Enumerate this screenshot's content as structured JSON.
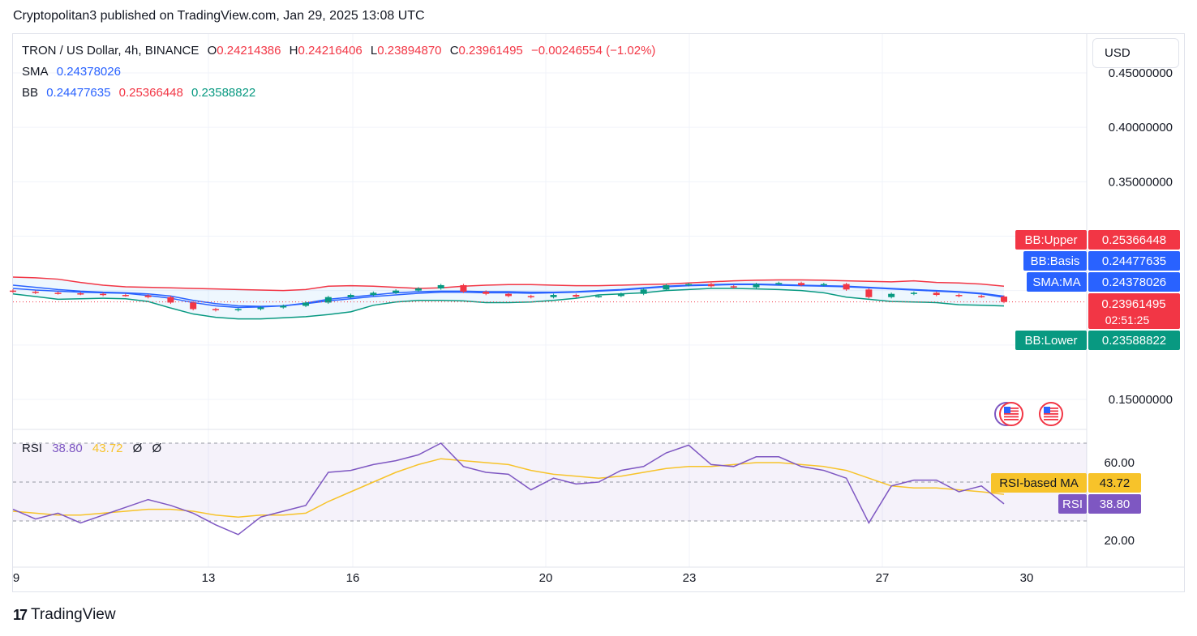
{
  "header": {
    "published": "Cryptopolitan3 published on TradingView.com, Jan 29, 2025 13:08 UTC"
  },
  "legend": {
    "symbol": "TRON / US Dollar, 4h, BINANCE",
    "o_label": "O",
    "o": "0.24214386",
    "h_label": "H",
    "h": "0.24216406",
    "l_label": "L",
    "l": "0.23894870",
    "c_label": "C",
    "c": "0.23961495",
    "change": "−0.00246554 (−1.02%)",
    "sma_label": "SMA",
    "sma": "0.24378026",
    "bb_label": "BB",
    "bb_basis": "0.24477635",
    "bb_upper": "0.25366448",
    "bb_lower": "0.23588822"
  },
  "currency": "USD",
  "price_axis": {
    "ticks": [
      "0.45000000",
      "0.40000000",
      "0.35000000",
      "0.15000000"
    ]
  },
  "price_labels": {
    "bb_upper_name": "BB:Upper",
    "bb_upper_value": "0.25366448",
    "bb_basis_name": "BB:Basis",
    "bb_basis_value": "0.24477635",
    "sma_name": "SMA:MA",
    "sma_value": "0.24378026",
    "last_price": "0.23961495",
    "countdown": "02:51:25",
    "bb_lower_name": "BB:Lower",
    "bb_lower_value": "0.23588822"
  },
  "rsi": {
    "label": "RSI",
    "value": "38.80",
    "ma_value": "43.72",
    "extra1": "Ø",
    "extra2": "Ø",
    "ticks": [
      "60.00",
      "20.00"
    ],
    "ma_label_name": "RSI-based MA",
    "ma_label_value": "43.72",
    "rsi_label_name": "RSI",
    "rsi_label_value": "38.80"
  },
  "time_axis": {
    "ticks": [
      "9",
      "13",
      "16",
      "20",
      "23",
      "27",
      "30"
    ]
  },
  "brand": {
    "name": "TradingView",
    "logo_text": "17"
  },
  "colors": {
    "up": "#089981",
    "down": "#f23645",
    "bb_upper": "#f23645",
    "bb_basis": "#2962ff",
    "bb_lower": "#089981",
    "rsi": "#7e57c2",
    "rsi_ma": "#f7c32a"
  },
  "chart_data": [
    {
      "type": "candlestick",
      "title": "TRON / US Dollar, 4h, BINANCE",
      "x_ticks": [
        "9",
        "13",
        "16",
        "20",
        "23",
        "27",
        "30"
      ],
      "ylim": [
        0.13,
        0.46
      ],
      "y_ticks": [
        0.15,
        0.35,
        0.4,
        0.45
      ],
      "y_scale": "linear",
      "series": [
        {
          "name": "BB:Upper",
          "values": [
            0.2624,
            0.2618,
            0.2605,
            0.2575,
            0.255,
            0.2535,
            0.253,
            0.2525,
            0.252,
            0.2515,
            0.251,
            0.2505,
            0.25,
            0.251,
            0.254,
            0.2545,
            0.254,
            0.253,
            0.252,
            0.2525,
            0.254,
            0.255,
            0.2555,
            0.2555,
            0.255,
            0.2545,
            0.2545,
            0.255,
            0.2555,
            0.256,
            0.257,
            0.258,
            0.259,
            0.2595,
            0.2598,
            0.2598,
            0.2595,
            0.259,
            0.2585,
            0.258,
            0.259,
            0.2575,
            0.257,
            0.256,
            0.254
          ]
        },
        {
          "name": "BB:Basis",
          "values": [
            0.255,
            0.253,
            0.251,
            0.2495,
            0.2485,
            0.248,
            0.247,
            0.245,
            0.241,
            0.238,
            0.236,
            0.2355,
            0.236,
            0.2385,
            0.242,
            0.244,
            0.246,
            0.248,
            0.249,
            0.2495,
            0.2495,
            0.249,
            0.249,
            0.2485,
            0.2485,
            0.249,
            0.25,
            0.251,
            0.2525,
            0.254,
            0.255,
            0.2555,
            0.256,
            0.256,
            0.2555,
            0.255,
            0.2545,
            0.254,
            0.253,
            0.252,
            0.251,
            0.25,
            0.249,
            0.2475,
            0.2448
          ]
        },
        {
          "name": "SMA:MA",
          "values": [
            0.252,
            0.2505,
            0.2495,
            0.2485,
            0.248,
            0.2475,
            0.2455,
            0.243,
            0.239,
            0.236,
            0.2345,
            0.235,
            0.236,
            0.238,
            0.2405,
            0.2425,
            0.2445,
            0.246,
            0.2475,
            0.2485,
            0.2485,
            0.248,
            0.248,
            0.2475,
            0.248,
            0.2485,
            0.2495,
            0.2505,
            0.252,
            0.2535,
            0.2545,
            0.255,
            0.2555,
            0.2555,
            0.255,
            0.2545,
            0.254,
            0.2535,
            0.2525,
            0.2515,
            0.2505,
            0.2495,
            0.2485,
            0.247,
            0.2438
          ]
        },
        {
          "name": "BB:Lower",
          "values": [
            0.247,
            0.2445,
            0.242,
            0.2425,
            0.243,
            0.2425,
            0.24,
            0.234,
            0.2285,
            0.2255,
            0.224,
            0.224,
            0.225,
            0.226,
            0.228,
            0.2305,
            0.2365,
            0.2395,
            0.241,
            0.241,
            0.2405,
            0.239,
            0.239,
            0.2395,
            0.241,
            0.243,
            0.246,
            0.247,
            0.248,
            0.25,
            0.251,
            0.252,
            0.252,
            0.2515,
            0.251,
            0.25,
            0.248,
            0.244,
            0.242,
            0.24,
            0.2395,
            0.239,
            0.237,
            0.2365,
            0.2359
          ]
        }
      ],
      "close": [
        0.249,
        0.248,
        0.2475,
        0.247,
        0.246,
        0.2455,
        0.244,
        0.239,
        0.233,
        0.232,
        0.233,
        0.2345,
        0.236,
        0.239,
        0.244,
        0.246,
        0.248,
        0.25,
        0.252,
        0.255,
        0.249,
        0.247,
        0.245,
        0.244,
        0.246,
        0.2445,
        0.245,
        0.247,
        0.251,
        0.255,
        0.256,
        0.254,
        0.253,
        0.256,
        0.257,
        0.255,
        0.256,
        0.251,
        0.244,
        0.247,
        0.248,
        0.246,
        0.245,
        0.2445,
        0.2396
      ],
      "last_price": 0.23961495
    },
    {
      "type": "line",
      "title": "RSI",
      "ylim": [
        10,
        75
      ],
      "y_ticks": [
        20,
        60
      ],
      "bands": [
        30,
        70
      ],
      "series": [
        {
          "name": "RSI",
          "values": [
            36,
            31,
            34,
            29,
            33,
            37,
            41,
            38,
            34,
            28,
            23,
            32,
            35,
            38,
            55,
            56,
            59,
            61,
            64,
            70,
            58,
            55,
            54,
            46,
            52,
            49,
            50,
            56,
            58,
            65,
            69,
            59,
            58,
            63,
            63,
            58,
            56,
            52,
            29,
            48,
            51,
            51,
            45,
            48,
            38.8
          ]
        },
        {
          "name": "RSI-based MA",
          "values": [
            35,
            34,
            33,
            33,
            34,
            35,
            36,
            36,
            35,
            33,
            32,
            33,
            33,
            34,
            40,
            45,
            50,
            55,
            59,
            62,
            61,
            60,
            59,
            56,
            54,
            53,
            52,
            53,
            55,
            57,
            58,
            58,
            59,
            60,
            60,
            59,
            58,
            56,
            52,
            48,
            47,
            47,
            46,
            45,
            43.72
          ]
        }
      ]
    }
  ]
}
